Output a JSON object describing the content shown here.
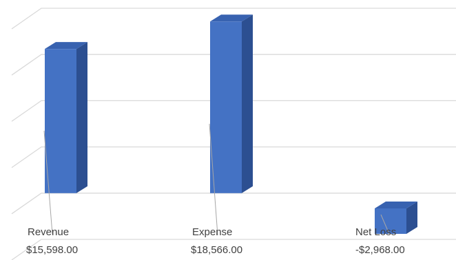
{
  "chart_data": {
    "type": "bar",
    "categories": [
      "Revenue",
      "Expense",
      "Net Loss"
    ],
    "values": [
      15598,
      18566,
      -2968
    ],
    "value_labels": [
      "$15,598.00",
      "$18,566.00",
      "-$2,968.00"
    ],
    "title": "",
    "xlabel": "",
    "ylabel": "",
    "ylim": [
      -5000,
      20000
    ],
    "grid": true,
    "legend": "none",
    "three_d": true
  },
  "colors": {
    "bar_front": "#4472c4",
    "bar_side": "#2c4f91",
    "bar_top": "#3862b0"
  }
}
